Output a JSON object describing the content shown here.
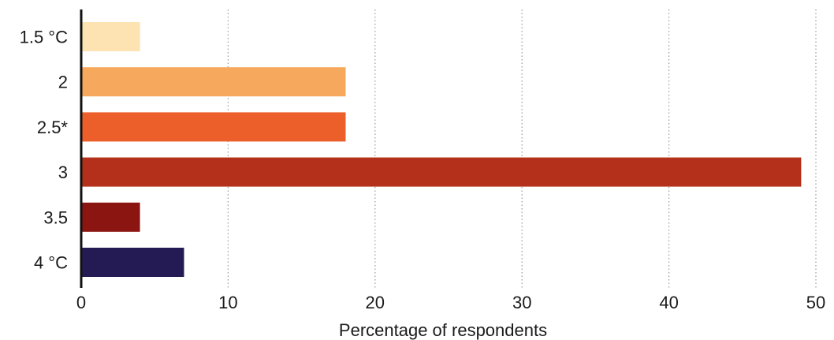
{
  "chart_data": {
    "type": "bar",
    "orientation": "horizontal",
    "categories": [
      "1.5 °C",
      "2",
      "2.5*",
      "3",
      "3.5",
      "4 °C"
    ],
    "values": [
      4,
      18,
      18,
      49,
      4,
      7
    ],
    "colors": [
      "#fce3b1",
      "#f6a95d",
      "#ec5e2a",
      "#b5301a",
      "#8b1510",
      "#241a54"
    ],
    "title": "",
    "xlabel": "Percentage of respondents",
    "ylabel": "",
    "xlim": [
      0,
      50
    ],
    "xticks": [
      "0",
      "10",
      "20",
      "30",
      "40",
      "50"
    ],
    "grid": "vertical dotted"
  }
}
